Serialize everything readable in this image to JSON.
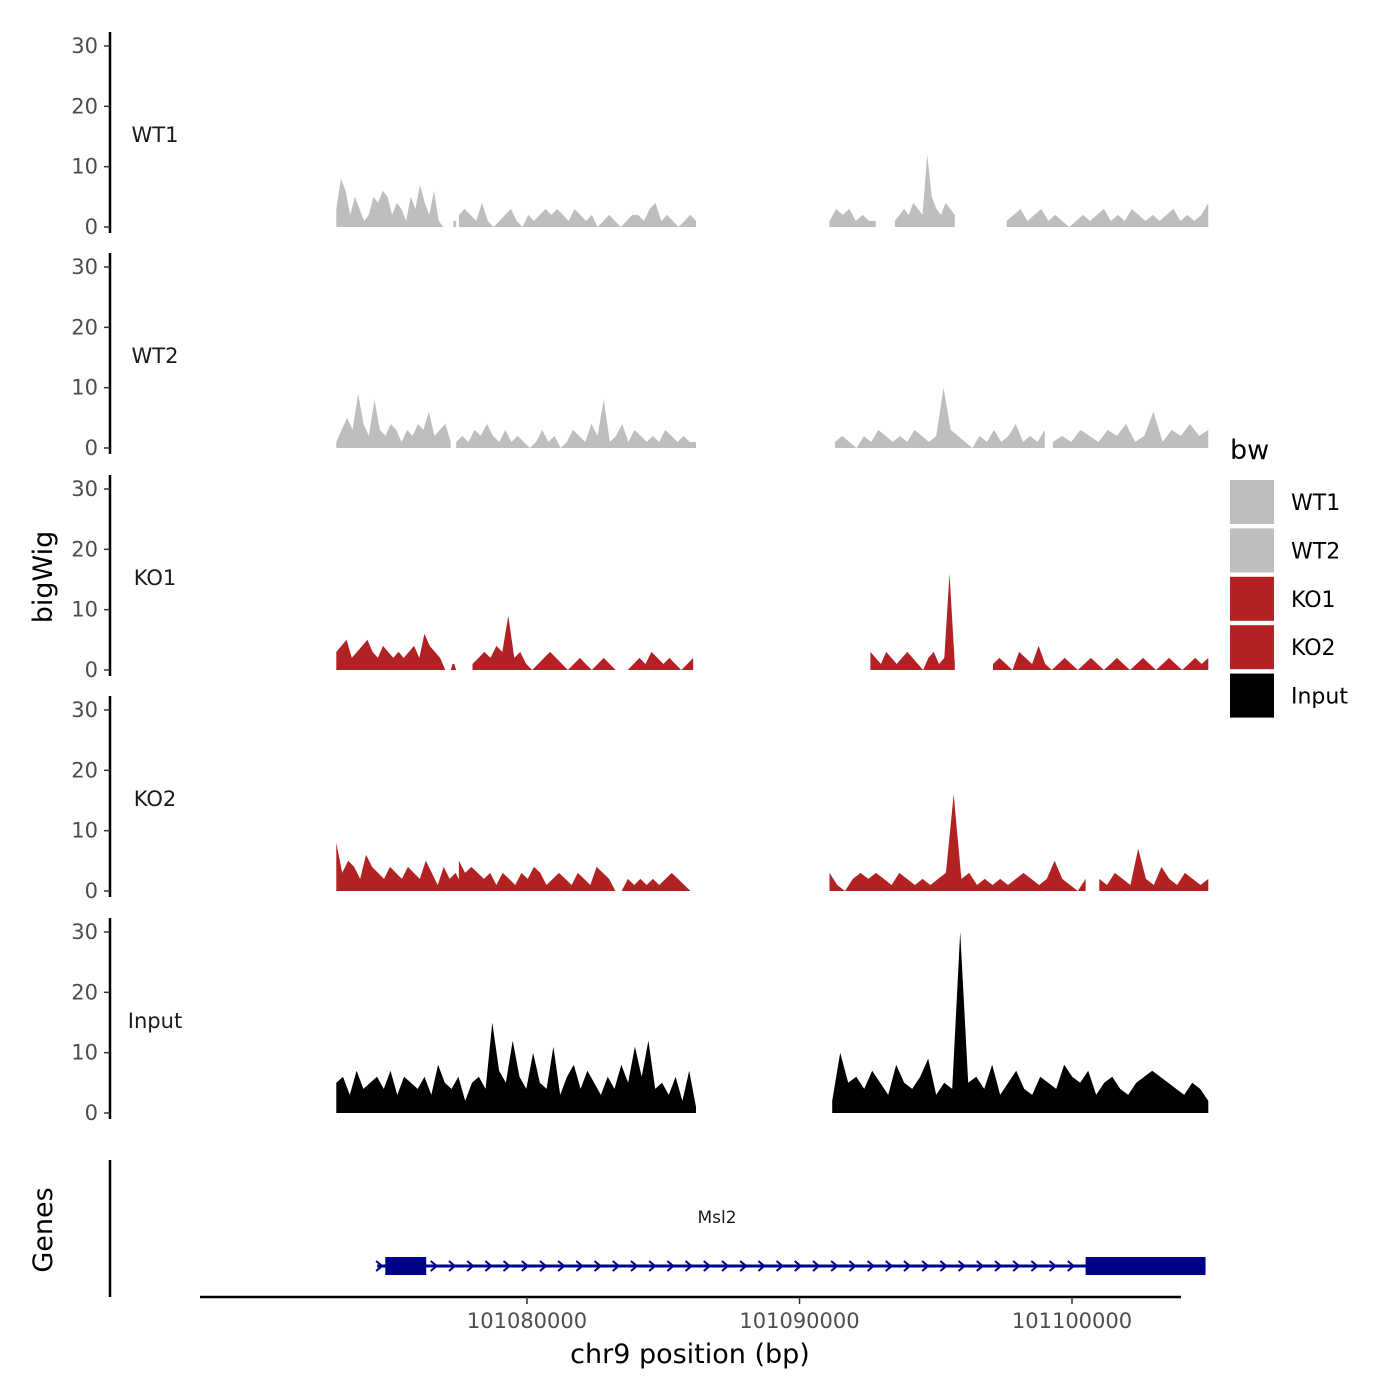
{
  "chart_data": {
    "type": "area",
    "title": "",
    "ylabel": "bigWig",
    "genes_label": "Genes",
    "xlabel": "chr9 position (bp)",
    "x_range": [
      101068000,
      101104000
    ],
    "x_ticks": [
      101080000,
      101090000,
      101100000
    ],
    "x_tick_labels": [
      "101080000",
      "101090000",
      "101100000"
    ],
    "y_range": [
      0,
      30
    ],
    "y_ticks": [
      0,
      10,
      20,
      30
    ],
    "y_tick_labels": [
      "0",
      "10",
      "20",
      "30"
    ],
    "legend": {
      "title": "bw",
      "placement": "right",
      "entries": [
        {
          "label": "WT1",
          "color": "#bebebe"
        },
        {
          "label": "WT2",
          "color": "#bebebe"
        },
        {
          "label": "KO1",
          "color": "#b22222"
        },
        {
          "label": "KO2",
          "color": "#b22222"
        },
        {
          "label": "Input",
          "color": "#000000"
        }
      ]
    },
    "tracks": [
      {
        "name": "WT1",
        "color": "#bebebe",
        "segments": [
          {
            "start": 101073000,
            "end": 101077100,
            "values": [
              3,
              8,
              6,
              2,
              5,
              3,
              1,
              2,
              5,
              4,
              6,
              5,
              2,
              4,
              3,
              1,
              5,
              3,
              7,
              4,
              2,
              6,
              1,
              0,
              0
            ]
          },
          {
            "start": 101077300,
            "end": 101077400,
            "values": [
              1,
              1
            ]
          },
          {
            "start": 101077500,
            "end": 101086200,
            "values": [
              2,
              3,
              2,
              1,
              4,
              1,
              0,
              1,
              2,
              3,
              1,
              0,
              2,
              1,
              2,
              3,
              2,
              3,
              2,
              1,
              3,
              2,
              1,
              2,
              0,
              1,
              2,
              1,
              0,
              1,
              2,
              2,
              1,
              3,
              4,
              1,
              2,
              1,
              0,
              1,
              2,
              1
            ]
          },
          {
            "start": 101091100,
            "end": 101092800,
            "values": [
              1,
              3,
              2,
              3,
              1,
              2,
              1,
              1
            ]
          },
          {
            "start": 101093500,
            "end": 101095700,
            "values": [
              1,
              2,
              3,
              2,
              4,
              3,
              2,
              12,
              5,
              3,
              2,
              4,
              3,
              2
            ]
          },
          {
            "start": 101097600,
            "end": 101105000,
            "values": [
              1,
              2,
              3,
              1,
              2,
              3,
              1,
              2,
              1,
              0,
              1,
              2,
              1,
              2,
              3,
              1,
              2,
              1,
              3,
              2,
              1,
              2,
              1,
              2,
              3,
              1,
              2,
              1,
              2,
              4
            ]
          }
        ]
      },
      {
        "name": "WT2",
        "color": "#bebebe",
        "segments": [
          {
            "start": 101073000,
            "end": 101077200,
            "values": [
              1,
              3,
              5,
              3,
              9,
              4,
              2,
              8,
              3,
              2,
              4,
              3,
              1,
              3,
              2,
              4,
              3,
              6,
              2,
              3,
              4,
              1
            ]
          },
          {
            "start": 101077400,
            "end": 101086200,
            "values": [
              1,
              2,
              1,
              3,
              2,
              4,
              2,
              1,
              3,
              1,
              2,
              1,
              0,
              1,
              3,
              1,
              2,
              0,
              1,
              3,
              2,
              1,
              4,
              2,
              8,
              1,
              2,
              4,
              1,
              3,
              2,
              1,
              2,
              1,
              3,
              2,
              1,
              2,
              1,
              1
            ]
          },
          {
            "start": 101091300,
            "end": 101099000,
            "values": [
              1,
              2,
              1,
              0,
              2,
              1,
              3,
              2,
              1,
              2,
              1,
              3,
              2,
              1,
              2,
              10,
              3,
              2,
              1,
              0,
              2,
              1,
              3,
              1,
              2,
              4,
              1,
              2,
              1,
              3
            ]
          },
          {
            "start": 101099300,
            "end": 101105000,
            "values": [
              1,
              2,
              1,
              3,
              2,
              1,
              3,
              2,
              4,
              1,
              2,
              6,
              1,
              3,
              2,
              4,
              2,
              3
            ]
          }
        ]
      },
      {
        "name": "KO1",
        "color": "#b22222",
        "segments": [
          {
            "start": 101073000,
            "end": 101077000,
            "values": [
              3,
              4,
              5,
              2,
              3,
              4,
              5,
              3,
              2,
              4,
              3,
              2,
              3,
              2,
              3,
              4,
              2,
              6,
              4,
              3,
              2,
              0
            ]
          },
          {
            "start": 101077200,
            "end": 101077400,
            "values": [
              0,
              1,
              1,
              0
            ]
          },
          {
            "start": 101078000,
            "end": 101086100,
            "values": [
              1,
              2,
              3,
              2,
              4,
              3,
              9,
              2,
              3,
              1,
              0,
              1,
              2,
              3,
              2,
              1,
              0,
              1,
              2,
              1,
              0,
              1,
              2,
              1,
              0,
              0,
              0,
              1,
              2,
              1,
              3,
              2,
              1,
              2,
              1,
              0,
              1,
              2
            ]
          },
          {
            "start": 101092600,
            "end": 101095700,
            "values": [
              3,
              2,
              1,
              3,
              2,
              1,
              2,
              3,
              2,
              1,
              0,
              2,
              3,
              1,
              2,
              16,
              1
            ]
          },
          {
            "start": 101097100,
            "end": 101105000,
            "values": [
              1,
              2,
              1,
              0,
              3,
              2,
              1,
              4,
              1,
              0,
              1,
              2,
              1,
              0,
              1,
              2,
              1,
              0,
              1,
              2,
              1,
              0,
              1,
              2,
              1,
              0,
              1,
              2,
              1,
              0,
              1,
              2,
              1,
              2
            ]
          }
        ]
      },
      {
        "name": "KO2",
        "color": "#b22222",
        "segments": [
          {
            "start": 101073000,
            "end": 101077600,
            "values": [
              8,
              3,
              5,
              4,
              2,
              6,
              4,
              3,
              2,
              4,
              3,
              2,
              4,
              3,
              2,
              5,
              3,
              1,
              4,
              2,
              3,
              1
            ]
          },
          {
            "start": 101077500,
            "end": 101086000,
            "values": [
              5,
              3,
              4,
              3,
              2,
              3,
              1,
              3,
              2,
              1,
              3,
              2,
              4,
              3,
              1,
              2,
              3,
              2,
              1,
              3,
              2,
              1,
              4,
              3,
              2,
              0,
              0,
              2,
              1,
              2,
              1,
              2,
              1,
              2,
              3,
              2,
              1,
              0
            ]
          },
          {
            "start": 101091100,
            "end": 101100500,
            "values": [
              3,
              1,
              0,
              2,
              3,
              2,
              3,
              2,
              1,
              3,
              2,
              1,
              2,
              1,
              2,
              3,
              16,
              2,
              3,
              1,
              2,
              1,
              2,
              1,
              2,
              3,
              2,
              1,
              2,
              5,
              2,
              1,
              0,
              2
            ]
          },
          {
            "start": 101101000,
            "end": 101105000,
            "values": [
              2,
              1,
              3,
              2,
              1,
              7,
              2,
              1,
              4,
              2,
              1,
              3,
              2,
              1,
              2
            ]
          }
        ]
      },
      {
        "name": "Input",
        "color": "#000000",
        "segments": [
          {
            "start": 101073000,
            "end": 101086200,
            "values": [
              5,
              6,
              3,
              7,
              4,
              5,
              6,
              4,
              7,
              3,
              6,
              5,
              4,
              6,
              3,
              8,
              5,
              4,
              6,
              2,
              5,
              6,
              4,
              15,
              7,
              5,
              12,
              6,
              4,
              10,
              5,
              4,
              11,
              3,
              6,
              8,
              4,
              7,
              5,
              3,
              6,
              4,
              8,
              5,
              11,
              6,
              12,
              4,
              5,
              3,
              6,
              2,
              7,
              1
            ]
          },
          {
            "start": 101091200,
            "end": 101105000,
            "values": [
              2,
              10,
              5,
              6,
              4,
              7,
              5,
              3,
              8,
              5,
              4,
              6,
              9,
              3,
              5,
              4,
              30,
              5,
              6,
              4,
              8,
              3,
              5,
              7,
              4,
              3,
              6,
              5,
              4,
              8,
              6,
              5,
              7,
              3,
              5,
              6,
              4,
              3,
              5,
              6,
              7,
              6,
              5,
              4,
              3,
              5,
              4,
              2
            ]
          }
        ]
      }
    ],
    "gene": {
      "name": "Msl2",
      "strand": "+",
      "start": 101074500,
      "end": 101104900,
      "exons": [
        [
          101074800,
          101076300
        ],
        [
          101100500,
          101104900
        ]
      ]
    }
  }
}
